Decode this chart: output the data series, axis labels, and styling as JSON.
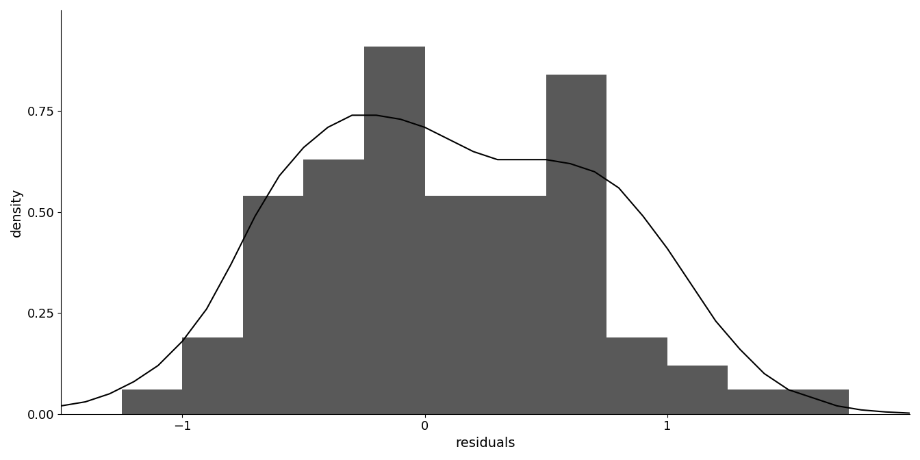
{
  "title": "",
  "xlabel": "residuals",
  "ylabel": "density",
  "bar_color": "#595959",
  "line_color": "black",
  "line_width": 1.5,
  "background_color": "white",
  "xlim": [
    -1.5,
    2.0
  ],
  "ylim": [
    0.0,
    1.0
  ],
  "yticks": [
    0.0,
    0.25,
    0.5,
    0.75
  ],
  "xticks": [
    -1,
    0,
    1
  ],
  "bin_edges": [
    -1.25,
    -1.0,
    -0.75,
    -0.5,
    -0.25,
    0.0,
    0.25,
    0.5,
    0.75,
    1.0,
    1.25,
    1.5,
    1.75
  ],
  "bin_heights": [
    0.06,
    0.19,
    0.54,
    0.63,
    0.91,
    0.54,
    0.54,
    0.84,
    0.19,
    0.12,
    0.06,
    0.06
  ],
  "kde_x": [
    -1.5,
    -1.4,
    -1.3,
    -1.2,
    -1.1,
    -1.0,
    -0.9,
    -0.8,
    -0.7,
    -0.6,
    -0.5,
    -0.4,
    -0.3,
    -0.2,
    -0.1,
    0.0,
    0.1,
    0.2,
    0.3,
    0.4,
    0.5,
    0.6,
    0.7,
    0.8,
    0.9,
    1.0,
    1.1,
    1.2,
    1.3,
    1.4,
    1.5,
    1.6,
    1.7,
    1.8,
    1.9,
    2.0
  ],
  "kde_y": [
    0.02,
    0.03,
    0.05,
    0.08,
    0.12,
    0.18,
    0.26,
    0.37,
    0.49,
    0.59,
    0.66,
    0.71,
    0.74,
    0.74,
    0.73,
    0.71,
    0.68,
    0.65,
    0.63,
    0.63,
    0.63,
    0.62,
    0.6,
    0.56,
    0.49,
    0.41,
    0.32,
    0.23,
    0.16,
    0.1,
    0.06,
    0.04,
    0.02,
    0.01,
    0.005,
    0.002
  ],
  "axis_fontsize": 14,
  "tick_fontsize": 13,
  "font_family": "DejaVu Sans"
}
